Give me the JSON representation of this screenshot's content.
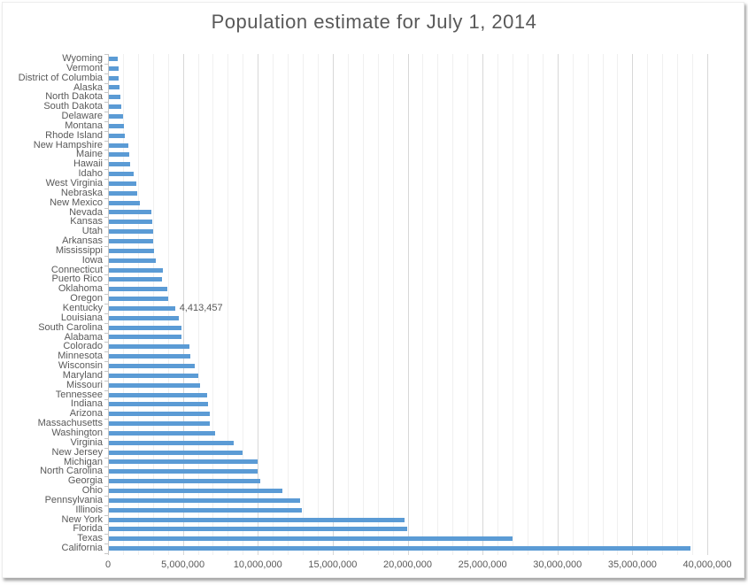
{
  "title": "Population estimate for July 1, 2014",
  "chart_data": {
    "type": "bar",
    "orientation": "horizontal",
    "title": "Population estimate for July 1, 2014",
    "xlabel": "",
    "ylabel": "",
    "xlim": [
      0,
      40000000
    ],
    "x_major_tick": 5000000,
    "x_minor_tick": 1000000,
    "x_tick_labels": [
      "0",
      "5,000,000",
      "10,000,000",
      "15,000,000",
      "20,000,000",
      "25,000,000",
      "30,000,000",
      "35,000,000",
      "40,000,000"
    ],
    "grid": "on",
    "legend": "none",
    "bar_color": "#5b9bd5",
    "label_color": "#595959",
    "gridline_minor_color": "#f0f0f0",
    "gridline_major_color": "#d8d8d8",
    "axis_color": "#c6c6c6",
    "categories": [
      "Wyoming",
      "Vermont",
      "District of Columbia",
      "Alaska",
      "North Dakota",
      "South Dakota",
      "Delaware",
      "Montana",
      "Rhode Island",
      "New Hampshire",
      "Maine",
      "Hawaii",
      "Idaho",
      "West Virginia",
      "Nebraska",
      "New Mexico",
      "Nevada",
      "Kansas",
      "Utah",
      "Arkansas",
      "Mississippi",
      "Iowa",
      "Connecticut",
      "Puerto Rico",
      "Oklahoma",
      "Oregon",
      "Kentucky",
      "Louisiana",
      "South Carolina",
      "Alabama",
      "Colorado",
      "Minnesota",
      "Wisconsin",
      "Maryland",
      "Missouri",
      "Tennessee",
      "Indiana",
      "Arizona",
      "Massachusetts",
      "Washington",
      "Virginia",
      "New Jersey",
      "Michigan",
      "North Carolina",
      "Georgia",
      "Ohio",
      "Pennsylvania",
      "Illinois",
      "New York",
      "Florida",
      "Texas",
      "California"
    ],
    "values": [
      584153,
      626562,
      658893,
      736732,
      739482,
      853175,
      935614,
      1023579,
      1055173,
      1326813,
      1330089,
      1419561,
      1634464,
      1850326,
      1881503,
      2085572,
      2839099,
      2904021,
      2942902,
      2966369,
      2994079,
      3107126,
      3596677,
      3548397,
      3878051,
      3970239,
      4413457,
      4649676,
      4832482,
      4849377,
      5355866,
      5457173,
      5757564,
      5976407,
      6063589,
      6549352,
      6596855,
      6731484,
      6745408,
      7061530,
      8326289,
      8938175,
      9909877,
      9943964,
      10097343,
      11594163,
      12787209,
      12880580,
      19746227,
      19893297,
      26956958,
      38802500
    ],
    "data_labels": [
      {
        "category": "Kentucky",
        "text": "4,413,457"
      }
    ]
  }
}
